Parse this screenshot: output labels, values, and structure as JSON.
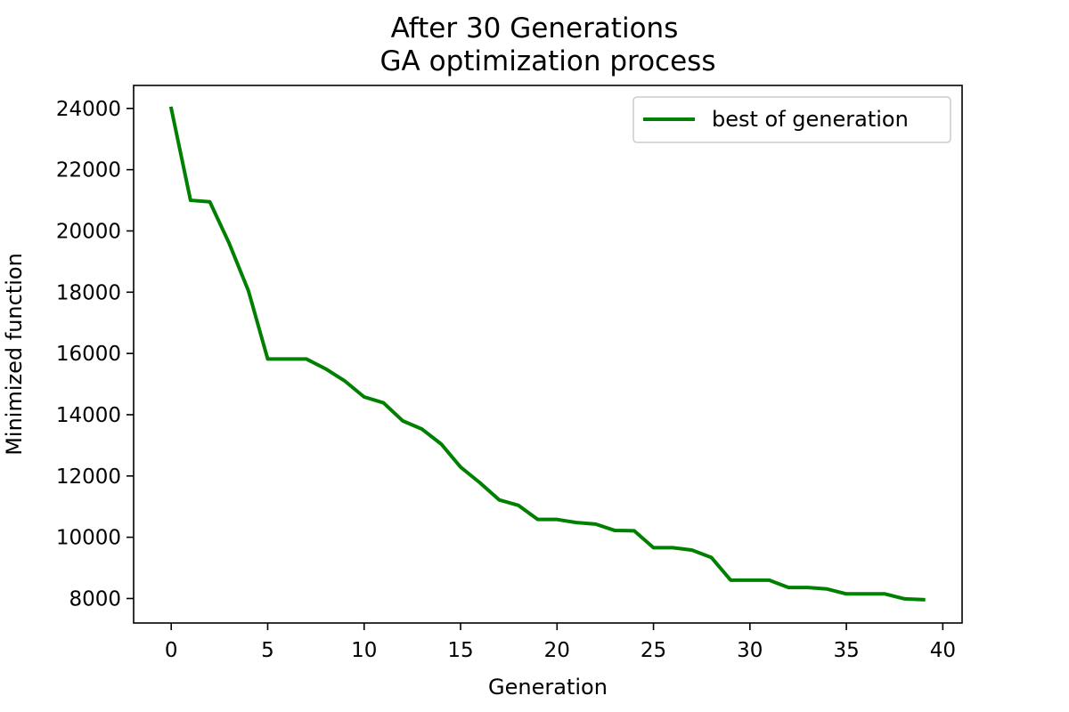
{
  "chart_data": {
    "type": "line",
    "title_lines": [
      "After 30 Generations",
      "GA optimization process"
    ],
    "xlabel": "Generation",
    "ylabel": "Minimized function",
    "xlim": [
      -1.95,
      41.0
    ],
    "ylim": [
      7200,
      24750
    ],
    "xticks": [
      0,
      5,
      10,
      15,
      20,
      25,
      30,
      35,
      40
    ],
    "yticks": [
      8000,
      10000,
      12000,
      14000,
      16000,
      18000,
      20000,
      22000,
      24000
    ],
    "grid": false,
    "legend_position": "top-right",
    "series": [
      {
        "name": "best of generation",
        "color": "#008000",
        "x": [
          0,
          1,
          2,
          3,
          4,
          5,
          6,
          7,
          8,
          9,
          10,
          11,
          12,
          13,
          14,
          15,
          16,
          17,
          18,
          19,
          20,
          21,
          22,
          23,
          24,
          25,
          26,
          27,
          28,
          29,
          30,
          31,
          32,
          33,
          34,
          35,
          36,
          37,
          38,
          39
        ],
        "y": [
          24000,
          21000,
          20950,
          19600,
          18050,
          15820,
          15820,
          15820,
          15500,
          15100,
          14580,
          14390,
          13800,
          13530,
          13040,
          12290,
          11780,
          11220,
          11040,
          10580,
          10580,
          10480,
          10430,
          10220,
          10210,
          9660,
          9660,
          9580,
          9340,
          8600,
          8600,
          8600,
          8360,
          8360,
          8310,
          8150,
          8150,
          8150,
          7990,
          7960
        ]
      }
    ]
  }
}
